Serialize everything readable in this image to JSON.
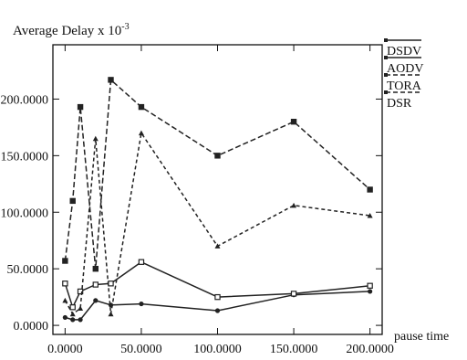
{
  "chart_data": {
    "type": "line",
    "title": "Average Delay x 10-3",
    "ylabel_main": "Average Delay x 10",
    "ylabel_exp": "-3",
    "xlabel": "pause time",
    "x_tick_labels": [
      "0.0000",
      "50.0000",
      "100.0000",
      "150.0000",
      "200.0000"
    ],
    "y_tick_labels": [
      "0.0000",
      "50.0000",
      "100.0000",
      "150.0000",
      "200.0000"
    ],
    "y_tick_values": [
      0,
      50,
      100,
      150,
      200
    ],
    "x_tick_values": [
      0,
      50,
      100,
      150,
      200
    ],
    "xlim": [
      -8,
      208
    ],
    "ylim": [
      -8,
      248
    ],
    "grid": false,
    "legend_position": "right",
    "series": [
      {
        "name": "DSDV",
        "style": "solid",
        "x": [
          0,
          5,
          10,
          20,
          30,
          50,
          100,
          150,
          200
        ],
        "y": [
          7,
          5,
          5,
          22,
          18,
          19,
          13,
          27,
          30
        ]
      },
      {
        "name": "AODV",
        "style": "solid",
        "x": [
          0,
          5,
          10,
          20,
          30,
          50,
          100,
          150,
          200
        ],
        "y": [
          37,
          16,
          30,
          36,
          37,
          56,
          25,
          28,
          35
        ]
      },
      {
        "name": "TORA",
        "style": "dashed",
        "x": [
          0,
          5,
          10,
          20,
          30,
          50,
          100,
          150,
          200
        ],
        "y": [
          57,
          110,
          193,
          50,
          217,
          193,
          150,
          180,
          120
        ]
      },
      {
        "name": "DSR",
        "style": "dashed",
        "x": [
          0,
          5,
          10,
          20,
          30,
          50,
          100,
          150,
          200
        ],
        "y": [
          22,
          10,
          15,
          165,
          10,
          170,
          70,
          106,
          97
        ]
      }
    ]
  }
}
